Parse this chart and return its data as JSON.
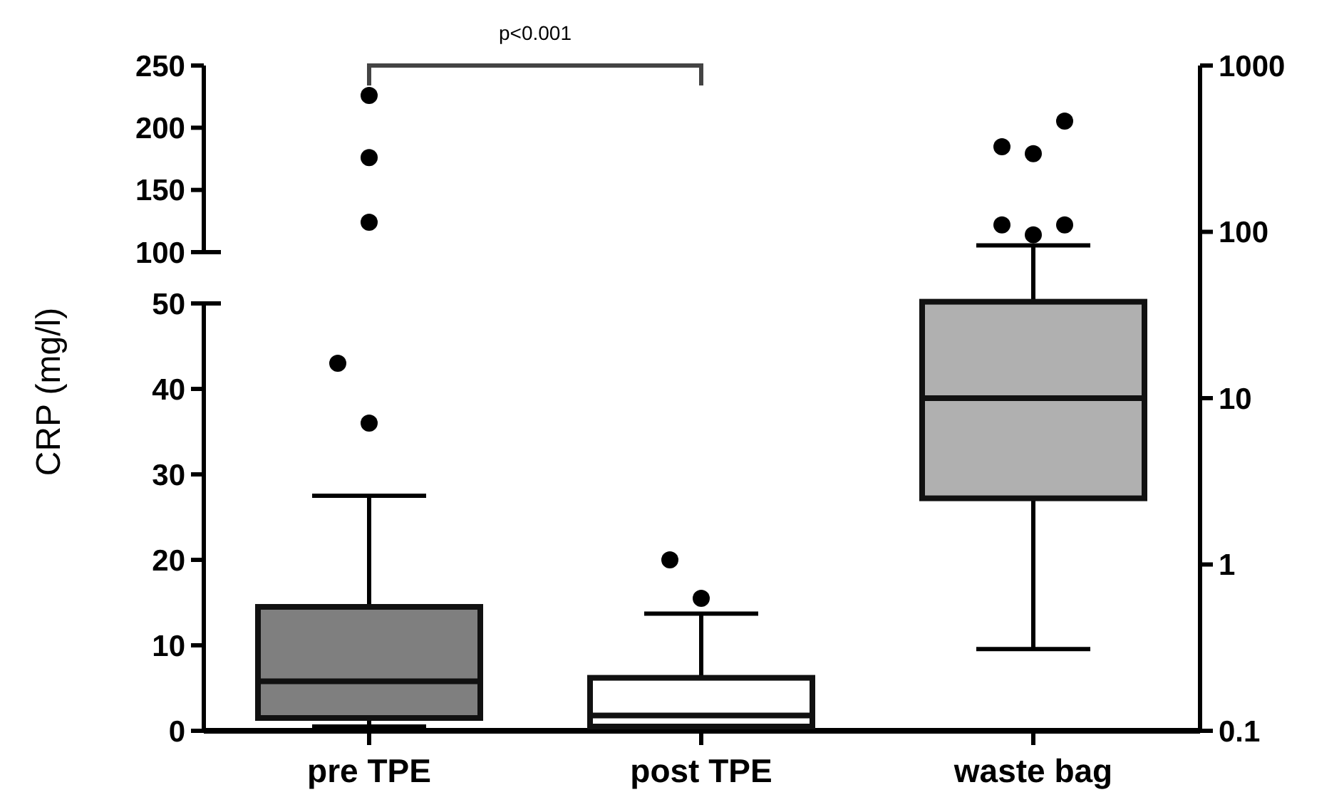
{
  "chart_data": [
    {
      "type": "scatter",
      "categories": [
        "pre TPE",
        "post TPE",
        "waste bag"
      ],
      "ylim": [
        100,
        250
      ],
      "yticks": [
        100,
        150,
        200,
        250
      ],
      "tick_labels": "y",
      "marker": "circle",
      "annotations": [
        "p<0.001"
      ],
      "series": [
        {
          "x": [
            "pre TPE",
            "pre TPE",
            "pre TPE"
          ],
          "values": [
            124,
            176,
            226
          ],
          "color": "#000000"
        }
      ]
    },
    {
      "type": "box",
      "categories": [
        "pre TPE",
        "post TPE",
        "waste bag"
      ],
      "ylabel": "CRP (mg/l)",
      "ylim": [
        0,
        50
      ],
      "yticks": [
        0,
        10,
        20,
        30,
        40,
        50
      ],
      "series": [
        {
          "color": "#7f7f7f",
          "boxes": [
            {
              "low": 0.5,
              "q1": 1.5,
              "median": 5.8,
              "q3": 14.5,
              "high": 27.5,
              "outliers": [
                36,
                43
              ]
            },
            null,
            null
          ]
        },
        {
          "color": "#ffffff",
          "boxes": [
            null,
            {
              "low": 0.2,
              "q1": 0.5,
              "median": 1.8,
              "q3": 6.2,
              "high": 13.7,
              "outliers": [
                15.5,
                20
              ]
            },
            null
          ]
        }
      ]
    },
    {
      "type": "box",
      "categories": [
        "pre TPE",
        "post TPE",
        "waste bag"
      ],
      "ylim": [
        0.1,
        1000
      ],
      "yticks": [
        0.1,
        1,
        10,
        100,
        1000
      ],
      "log": true,
      "tick_labels": "y",
      "series": [
        {
          "color": "#b0b0b0",
          "boxes": [
            null,
            null,
            {
              "low": 0.31,
              "q1": 2.5,
              "median": 10,
              "q3": 38,
              "high": 83,
              "outliers": [
                96,
                110,
                110,
                295,
                325,
                463
              ]
            }
          ]
        }
      ]
    }
  ]
}
